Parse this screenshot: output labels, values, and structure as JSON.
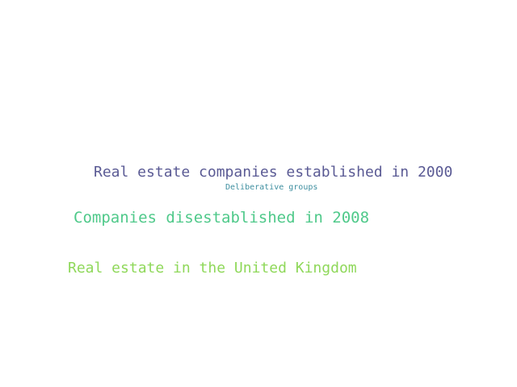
{
  "words": [
    {
      "text": "Real estate companies established in 2000",
      "color": "#5a5a94"
    },
    {
      "text": "Deliberative groups",
      "color": "#3f8fa0"
    },
    {
      "text": "Companies disestablished in 2008",
      "color": "#4fc98a"
    },
    {
      "text": "Real estate in the United Kingdom",
      "color": "#8fd85a"
    }
  ]
}
